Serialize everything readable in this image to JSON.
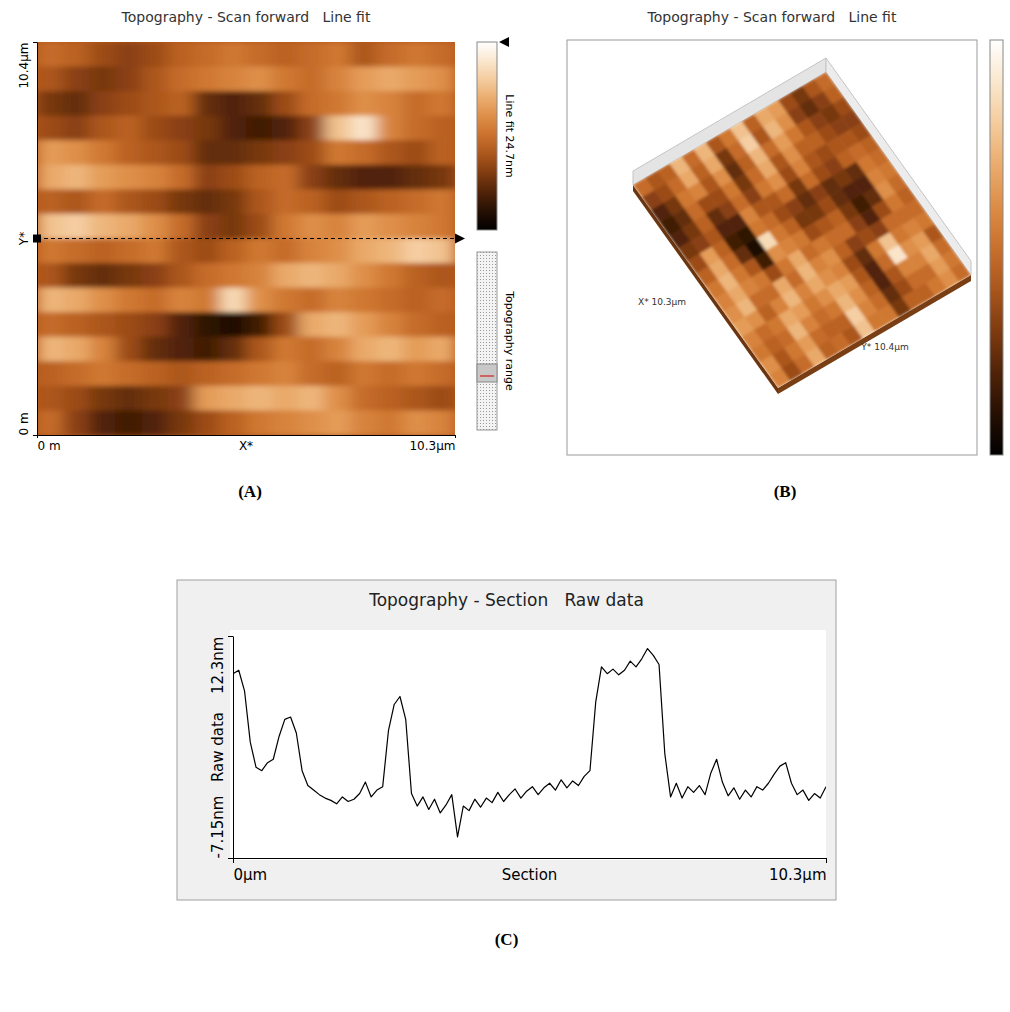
{
  "chart_data": [
    {
      "type": "heatmap",
      "title": "Topography - Scan forward   Line fit",
      "panel_label": "(A)",
      "xlabel": "X*",
      "ylabel": "Y*",
      "xlim": [
        0,
        10.3
      ],
      "ylim": [
        0,
        10.4
      ],
      "xticks": [
        {
          "value": 0,
          "label": "0 m"
        },
        {
          "value": 10.3,
          "label": "10.3µm"
        }
      ],
      "yticks": [
        {
          "value": 0,
          "label": "0 m"
        },
        {
          "value": 10.4,
          "label": "10.4µm"
        }
      ],
      "section_y": 5.2,
      "colorbar": {
        "range": [
          0,
          24.7
        ],
        "label": "Line fit 24.7nm"
      },
      "range_label": "Topography range",
      "cells": [
        [
          12,
          11,
          9,
          8,
          9,
          11,
          12,
          13,
          12,
          11,
          12,
          13,
          10,
          12,
          13,
          12
        ],
        [
          10,
          8,
          7,
          8,
          10,
          12,
          13,
          14,
          15,
          13,
          12,
          14,
          16,
          17,
          16,
          15
        ],
        [
          7,
          6,
          8,
          9,
          10,
          11,
          6,
          5,
          6,
          9,
          12,
          13,
          15,
          14,
          12,
          13
        ],
        [
          9,
          8,
          10,
          11,
          9,
          8,
          7,
          5,
          4,
          5,
          8,
          19,
          22,
          14,
          12,
          11
        ],
        [
          16,
          15,
          13,
          11,
          10,
          9,
          6,
          6,
          7,
          8,
          9,
          13,
          12,
          10,
          9,
          11
        ],
        [
          17,
          18,
          16,
          15,
          14,
          12,
          8,
          9,
          11,
          12,
          8,
          6,
          5,
          5,
          6,
          7
        ],
        [
          11,
          10,
          12,
          10,
          9,
          7,
          6,
          7,
          10,
          12,
          11,
          9,
          10,
          11,
          12,
          13
        ],
        [
          19,
          20,
          18,
          17,
          15,
          12,
          8,
          7,
          9,
          13,
          15,
          14,
          16,
          15,
          14,
          13
        ],
        [
          13,
          12,
          11,
          12,
          13,
          10,
          9,
          11,
          13,
          12,
          14,
          15,
          17,
          18,
          20,
          19
        ],
        [
          10,
          7,
          6,
          7,
          8,
          10,
          12,
          13,
          14,
          17,
          18,
          17,
          15,
          13,
          11,
          10
        ],
        [
          18,
          17,
          15,
          13,
          12,
          14,
          13,
          21,
          15,
          13,
          12,
          14,
          13,
          12,
          11,
          12
        ],
        [
          12,
          11,
          10,
          9,
          8,
          5,
          3,
          2,
          4,
          9,
          17,
          18,
          16,
          14,
          12,
          11
        ],
        [
          18,
          17,
          14,
          9,
          6,
          5,
          4,
          6,
          10,
          13,
          12,
          14,
          17,
          18,
          16,
          17
        ],
        [
          11,
          12,
          13,
          12,
          11,
          10,
          11,
          12,
          13,
          14,
          12,
          11,
          13,
          12,
          13,
          12
        ],
        [
          10,
          9,
          7,
          6,
          7,
          8,
          16,
          17,
          18,
          17,
          18,
          15,
          12,
          11,
          10,
          9
        ],
        [
          12,
          8,
          5,
          4,
          5,
          7,
          9,
          11,
          13,
          14,
          15,
          16,
          14,
          13,
          15,
          14
        ]
      ]
    },
    {
      "type": "surface",
      "title": "Topography - Scan forward   Line fit",
      "panel_label": "(B)",
      "xlabel": "X* 10.3µm",
      "ylabel": "Y* 10.4µm",
      "xlim": [
        0,
        10.3
      ],
      "ylim": [
        0,
        10.4
      ]
    },
    {
      "type": "line",
      "title": "Topography - Section   Raw data",
      "panel_label": "(C)",
      "xlabel": "Section",
      "ylabel": "Raw data",
      "color": "#000000",
      "xlim": [
        0,
        10.3
      ],
      "ylim": [
        -7.15,
        12.3
      ],
      "xticks": [
        {
          "value": 0,
          "label": "0µm"
        },
        {
          "value": 10.3,
          "label": "10.3µm"
        }
      ],
      "yticks": [
        {
          "value": -7.15,
          "label": "-7.15nm"
        },
        {
          "value": 12.3,
          "label": "12.3nm"
        }
      ],
      "x": [
        0,
        0.1,
        0.2,
        0.3,
        0.4,
        0.5,
        0.6,
        0.7,
        0.8,
        0.9,
        1.0,
        1.1,
        1.2,
        1.3,
        1.4,
        1.5,
        1.6,
        1.7,
        1.8,
        1.9,
        2.0,
        2.1,
        2.2,
        2.3,
        2.4,
        2.5,
        2.6,
        2.7,
        2.8,
        2.9,
        3.0,
        3.1,
        3.2,
        3.3,
        3.4,
        3.5,
        3.6,
        3.7,
        3.8,
        3.9,
        4.0,
        4.1,
        4.2,
        4.3,
        4.4,
        4.5,
        4.6,
        4.7,
        4.8,
        4.9,
        5.0,
        5.1,
        5.2,
        5.3,
        5.4,
        5.5,
        5.6,
        5.7,
        5.8,
        5.9,
        6.0,
        6.1,
        6.2,
        6.3,
        6.4,
        6.5,
        6.6,
        6.7,
        6.8,
        6.9,
        7.0,
        7.1,
        7.2,
        7.3,
        7.4,
        7.5,
        7.6,
        7.7,
        7.8,
        7.9,
        8.0,
        8.1,
        8.2,
        8.3,
        8.4,
        8.5,
        8.6,
        8.7,
        8.8,
        8.9,
        9.0,
        9.1,
        9.2,
        9.3,
        9.4,
        9.5,
        9.6,
        9.7,
        9.8,
        9.9,
        10.0,
        10.1,
        10.2,
        10.3
      ],
      "values": [
        9.0,
        9.3,
        7.5,
        3.0,
        0.8,
        0.5,
        1.2,
        1.5,
        3.5,
        5.0,
        5.2,
        3.8,
        0.5,
        -0.8,
        -1.2,
        -1.6,
        -1.9,
        -2.1,
        -2.4,
        -1.8,
        -2.2,
        -2.0,
        -1.5,
        -0.5,
        -1.8,
        -1.2,
        -0.9,
        4.0,
        6.3,
        7.0,
        5.0,
        -1.5,
        -2.6,
        -1.8,
        -2.9,
        -2.0,
        -3.2,
        -2.5,
        -1.6,
        -5.3,
        -2.6,
        -3.0,
        -2.0,
        -2.7,
        -1.9,
        -2.3,
        -1.4,
        -2.2,
        -1.6,
        -1.1,
        -1.9,
        -1.3,
        -0.9,
        -1.6,
        -1.0,
        -0.6,
        -1.2,
        -0.3,
        -1.0,
        -0.4,
        -0.8,
        0.0,
        0.5,
        6.5,
        9.6,
        9.0,
        9.4,
        8.9,
        9.3,
        10.1,
        9.6,
        10.3,
        11.2,
        10.6,
        9.8,
        2.0,
        -1.8,
        -0.6,
        -1.9,
        -0.9,
        -1.4,
        -0.8,
        -1.6,
        0.3,
        1.5,
        -0.5,
        -1.7,
        -1.0,
        -2.0,
        -1.2,
        -1.8,
        -0.9,
        -1.2,
        -0.6,
        0.2,
        0.9,
        1.2,
        -0.6,
        -1.6,
        -1.2,
        -2.1,
        -1.5,
        -1.9,
        -0.9
      ]
    }
  ]
}
